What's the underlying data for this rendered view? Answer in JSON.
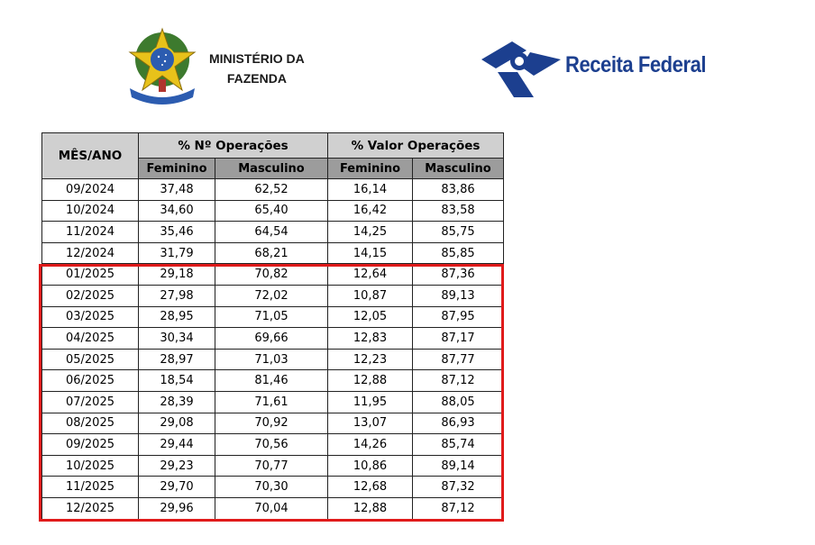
{
  "header": {
    "ministry_line1": "MINISTÉRIO DA",
    "ministry_line2": "FAZENDA",
    "ministry_logo_icon": "brazil-coat-of-arms-icon",
    "agency_name": "Receita Federal",
    "agency_logo_icon": "receita-federal-logo-icon",
    "agency_color": "#1c3f8f"
  },
  "table": {
    "col_month": "MÊS/ANO",
    "group_count": "% Nº Operações",
    "group_value": "% Valor Operações",
    "sub_fem": "Feminino",
    "sub_masc": "Masculino",
    "rows": [
      [
        "09/2024",
        "37,48",
        "62,52",
        "16,14",
        "83,86"
      ],
      [
        "10/2024",
        "34,60",
        "65,40",
        "16,42",
        "83,58"
      ],
      [
        "11/2024",
        "35,46",
        "64,54",
        "14,25",
        "85,75"
      ],
      [
        "12/2024",
        "31,79",
        "68,21",
        "14,15",
        "85,85"
      ],
      [
        "01/2025",
        "29,18",
        "70,82",
        "12,64",
        "87,36"
      ],
      [
        "02/2025",
        "27,98",
        "72,02",
        "10,87",
        "89,13"
      ],
      [
        "03/2025",
        "28,95",
        "71,05",
        "12,05",
        "87,95"
      ],
      [
        "04/2025",
        "30,34",
        "69,66",
        "12,83",
        "87,17"
      ],
      [
        "05/2025",
        "28,97",
        "71,03",
        "12,23",
        "87,77"
      ],
      [
        "06/2025",
        "18,54",
        "81,46",
        "12,88",
        "87,12"
      ],
      [
        "07/2025",
        "28,39",
        "71,61",
        "11,95",
        "88,05"
      ],
      [
        "08/2025",
        "29,08",
        "70,92",
        "13,07",
        "86,93"
      ],
      [
        "09/2025",
        "29,44",
        "70,56",
        "14,26",
        "85,74"
      ],
      [
        "10/2025",
        "29,23",
        "70,77",
        "10,86",
        "89,14"
      ],
      [
        "11/2025",
        "29,70",
        "70,30",
        "12,68",
        "87,32"
      ],
      [
        "12/2025",
        "29,96",
        "70,04",
        "12,88",
        "87,12"
      ]
    ],
    "highlight_color": "#e01b1b",
    "header_bg_top": "#d0d0d0",
    "header_bg_sub": "#9c9c9c"
  }
}
